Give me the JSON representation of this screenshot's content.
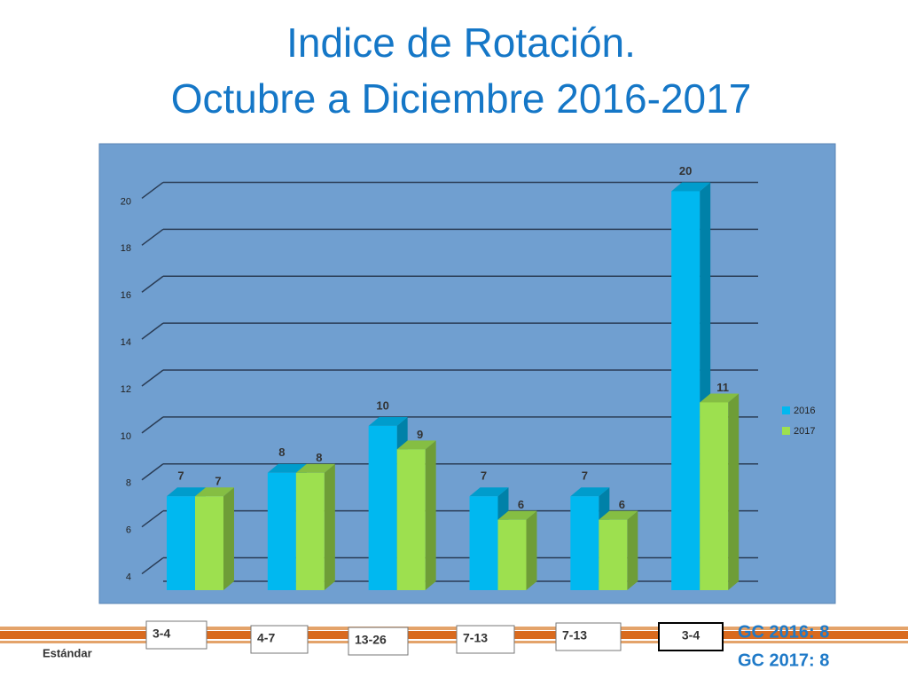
{
  "chart_data": {
    "type": "bar",
    "title": [
      "Indice de Rotación.",
      "Octubre a Diciembre 2016-2017"
    ],
    "categories": [
      null,
      null,
      null,
      null,
      null,
      null
    ],
    "series": [
      {
        "name": "2016",
        "color": "#00b8f0",
        "values": [
          7,
          8,
          10,
          7,
          7,
          20
        ]
      },
      {
        "name": "2017",
        "color": "#9de04f",
        "values": [
          7,
          8,
          9,
          6,
          6,
          11
        ]
      }
    ],
    "ylim": [
      3,
      21
    ],
    "yticks": [
      4,
      6,
      8,
      10,
      12,
      14,
      16,
      18,
      20
    ],
    "grid": true,
    "legend": "right",
    "standards": [
      "3-4",
      "4-7",
      "13-26",
      "7-13",
      "7-13",
      "3-4"
    ],
    "standard_label": "Estándar",
    "gc": [
      "GC 2016: 8",
      "GC 2017: 8"
    ]
  }
}
